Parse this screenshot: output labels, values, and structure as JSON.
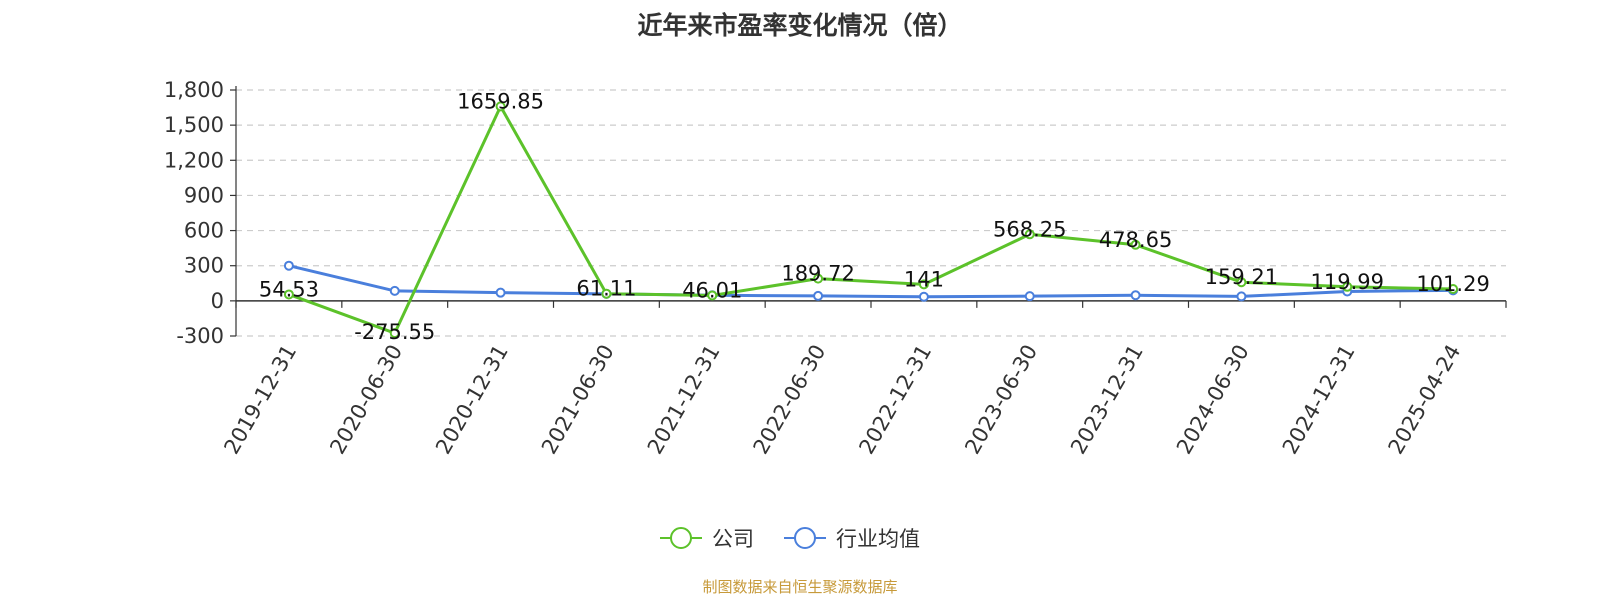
{
  "chart_data": {
    "type": "line",
    "title": "近年来市盈率变化情况（倍）",
    "categories": [
      "2019-12-31",
      "2020-06-30",
      "2020-12-31",
      "2021-06-30",
      "2021-12-31",
      "2022-06-30",
      "2022-12-31",
      "2023-06-30",
      "2023-12-31",
      "2024-06-30",
      "2024-12-31",
      "2025-04-24"
    ],
    "series": [
      {
        "name": "公司",
        "color": "#5cc22a",
        "values": [
          54.53,
          -275.55,
          1659.85,
          61.11,
          46.01,
          189.72,
          141,
          568.25,
          478.65,
          159.21,
          119.99,
          101.29
        ],
        "labels": [
          "54.53",
          "-275.55",
          "1659.85",
          "61.11",
          "46.01",
          "189.72",
          "141",
          "568.25",
          "478.65",
          "159.21",
          "119.99",
          "101.29"
        ]
      },
      {
        "name": "行业均值",
        "color": "#4a7fdc",
        "values": [
          300,
          85,
          70,
          60,
          48,
          42,
          35,
          40,
          48,
          38,
          80,
          90
        ]
      }
    ],
    "ylim": [
      -300,
      1800
    ],
    "yticks": [
      -300,
      0,
      300,
      600,
      900,
      1200,
      1500,
      1800
    ],
    "ytick_labels": [
      "-300",
      "0",
      "300",
      "600",
      "900",
      "1,200",
      "1,500",
      "1,800"
    ],
    "grid": true,
    "legend_position": "bottom",
    "source": "制图数据来自恒生聚源数据库"
  }
}
